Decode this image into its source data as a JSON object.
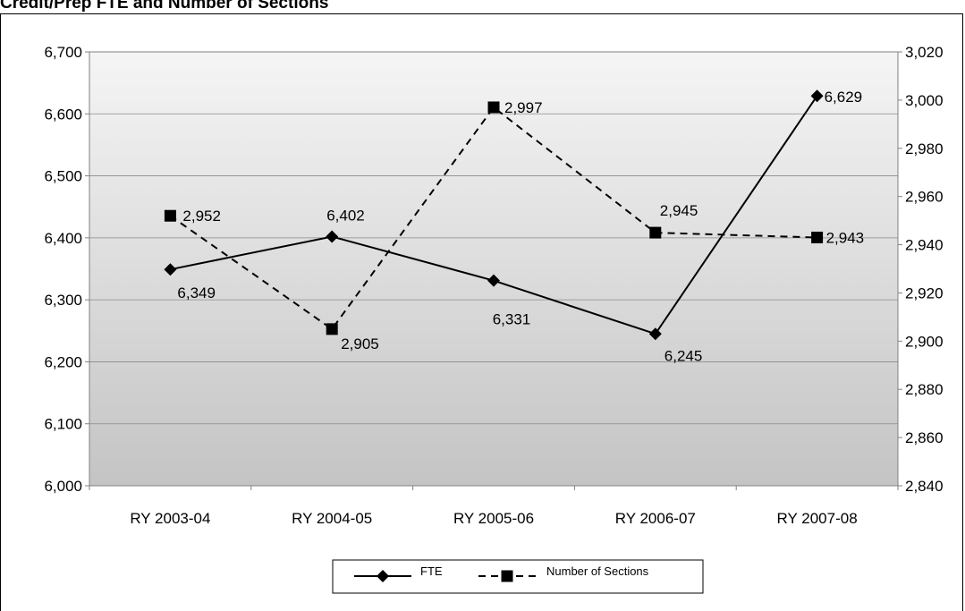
{
  "chart_data": {
    "type": "line",
    "title": "Credit/Prep FTE and Number of Sections",
    "categories": [
      "RY 2003-04",
      "RY 2004-05",
      "RY 2005-06",
      "RY 2006-07",
      "RY 2007-08"
    ],
    "series": [
      {
        "name": "FTE",
        "axis": "left",
        "values": [
          6349,
          6402,
          6331,
          6245,
          6629
        ],
        "labels": [
          "6,349",
          "6,402",
          "6,331",
          "6,245",
          "6,629"
        ],
        "line_style": "solid",
        "marker": "diamond",
        "color": "#000000"
      },
      {
        "name": "Number of Sections",
        "axis": "right",
        "values": [
          2952,
          2905,
          2997,
          2945,
          2943
        ],
        "labels": [
          "2,952",
          "2,905",
          "2,997",
          "2,945",
          "2,943"
        ],
        "line_style": "dashed",
        "marker": "square",
        "color": "#000000"
      }
    ],
    "y_left": {
      "ylim": [
        6000,
        6700
      ],
      "ticks": [
        6000,
        6100,
        6200,
        6300,
        6400,
        6500,
        6600,
        6700
      ],
      "tick_labels": [
        "6,000",
        "6,100",
        "6,200",
        "6,300",
        "6,400",
        "6,500",
        "6,600",
        "6,700"
      ]
    },
    "y_right": {
      "ylim": [
        2840,
        3020
      ],
      "ticks": [
        2840,
        2860,
        2880,
        2900,
        2920,
        2940,
        2960,
        2980,
        3000,
        3020
      ],
      "tick_labels": [
        "2,840",
        "2,860",
        "2,880",
        "2,900",
        "2,920",
        "2,940",
        "2,960",
        "2,980",
        "3,000",
        "3,020"
      ]
    },
    "grid": true,
    "legend_position": "bottom-center",
    "plot_background": "gradient-light-to-gray"
  }
}
